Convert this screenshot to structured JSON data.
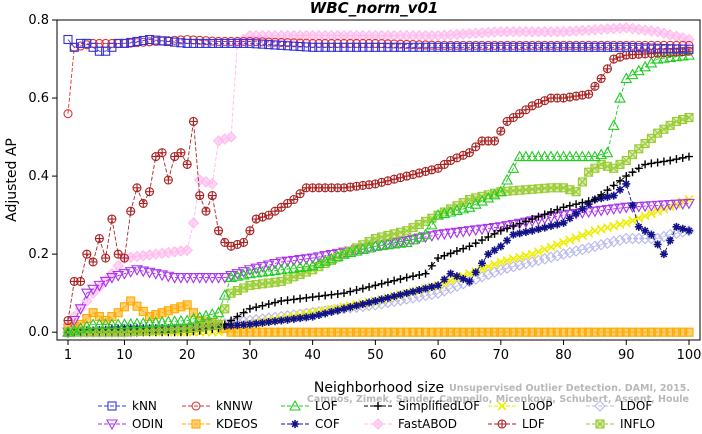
{
  "chart_data": {
    "type": "line",
    "title": "WBC_norm_v01",
    "xlabel": "Neighborhood size",
    "ylabel": "Adjusted AP",
    "xlim": [
      1,
      100
    ],
    "ylim": [
      -0.02,
      0.8
    ],
    "xticks": [
      1,
      10,
      20,
      30,
      40,
      50,
      60,
      70,
      80,
      90,
      100
    ],
    "yticks": [
      0.0,
      0.2,
      0.4,
      0.6,
      0.8
    ],
    "ytick_labels": [
      "0.0",
      "0.2",
      "0.4",
      "0.6",
      "0.8"
    ],
    "credit": [
      "Unsupervised Outlier Detection. DAMI, 2015.",
      "Campos, Zimek, Sander, Campello, Micenkova, Schubert, Assent, Houle"
    ],
    "series": [
      {
        "name": "kNN",
        "color": "#3333dd",
        "marker": "square",
        "points": [
          [
            1,
            0.75
          ],
          [
            2,
            0.73
          ],
          [
            3,
            0.74
          ],
          [
            4,
            0.74
          ],
          [
            5,
            0.73
          ],
          [
            6,
            0.72
          ],
          [
            7,
            0.72
          ],
          [
            8,
            0.73
          ],
          [
            9,
            0.74
          ],
          [
            10,
            0.74
          ],
          [
            12,
            0.745
          ],
          [
            14,
            0.75
          ],
          [
            20,
            0.74
          ],
          [
            30,
            0.74
          ],
          [
            40,
            0.73
          ],
          [
            50,
            0.73
          ],
          [
            60,
            0.73
          ],
          [
            70,
            0.73
          ],
          [
            80,
            0.73
          ],
          [
            90,
            0.73
          ],
          [
            100,
            0.725
          ]
        ]
      },
      {
        "name": "kNNW",
        "color": "#dd3333",
        "marker": "circle",
        "points": [
          [
            1,
            0.56
          ],
          [
            2,
            0.73
          ],
          [
            5,
            0.74
          ],
          [
            10,
            0.74
          ],
          [
            15,
            0.745
          ],
          [
            20,
            0.75
          ],
          [
            25,
            0.745
          ],
          [
            30,
            0.745
          ],
          [
            40,
            0.74
          ],
          [
            50,
            0.74
          ],
          [
            60,
            0.735
          ],
          [
            70,
            0.735
          ],
          [
            80,
            0.735
          ],
          [
            90,
            0.735
          ],
          [
            100,
            0.735
          ]
        ]
      },
      {
        "name": "LOF",
        "color": "#22cc22",
        "marker": "triangle-up",
        "points": [
          [
            1,
            0.0
          ],
          [
            5,
            0.02
          ],
          [
            10,
            0.02
          ],
          [
            20,
            0.03
          ],
          [
            25,
            0.05
          ],
          [
            27,
            0.14
          ],
          [
            30,
            0.15
          ],
          [
            35,
            0.16
          ],
          [
            40,
            0.17
          ],
          [
            45,
            0.2
          ],
          [
            50,
            0.22
          ],
          [
            55,
            0.23
          ],
          [
            58,
            0.25
          ],
          [
            60,
            0.3
          ],
          [
            65,
            0.32
          ],
          [
            70,
            0.36
          ],
          [
            73,
            0.45
          ],
          [
            80,
            0.45
          ],
          [
            85,
            0.45
          ],
          [
            87,
            0.46
          ],
          [
            89,
            0.6
          ],
          [
            90,
            0.65
          ],
          [
            95,
            0.7
          ],
          [
            100,
            0.71
          ]
        ]
      },
      {
        "name": "SimplifiedLOF",
        "color": "#000000",
        "marker": "plus",
        "points": [
          [
            1,
            0.0
          ],
          [
            10,
            0.0
          ],
          [
            20,
            0.0
          ],
          [
            25,
            0.01
          ],
          [
            28,
            0.04
          ],
          [
            30,
            0.06
          ],
          [
            35,
            0.08
          ],
          [
            40,
            0.09
          ],
          [
            45,
            0.1
          ],
          [
            50,
            0.12
          ],
          [
            55,
            0.14
          ],
          [
            58,
            0.15
          ],
          [
            60,
            0.19
          ],
          [
            65,
            0.22
          ],
          [
            70,
            0.26
          ],
          [
            75,
            0.29
          ],
          [
            80,
            0.32
          ],
          [
            85,
            0.34
          ],
          [
            90,
            0.4
          ],
          [
            93,
            0.43
          ],
          [
            97,
            0.44
          ],
          [
            100,
            0.45
          ]
        ]
      },
      {
        "name": "LoOP",
        "color": "#eeee00",
        "marker": "x",
        "points": [
          [
            1,
            0.0
          ],
          [
            10,
            0.0
          ],
          [
            20,
            0.0
          ],
          [
            25,
            0.0
          ],
          [
            30,
            0.02
          ],
          [
            40,
            0.05
          ],
          [
            50,
            0.08
          ],
          [
            60,
            0.12
          ],
          [
            65,
            0.15
          ],
          [
            70,
            0.18
          ],
          [
            75,
            0.2
          ],
          [
            80,
            0.23
          ],
          [
            85,
            0.26
          ],
          [
            90,
            0.28
          ],
          [
            95,
            0.31
          ],
          [
            100,
            0.34
          ]
        ]
      },
      {
        "name": "LDOF",
        "color": "#b8b8ee",
        "marker": "diamond",
        "points": [
          [
            1,
            0.0
          ],
          [
            10,
            0.0
          ],
          [
            20,
            0.01
          ],
          [
            25,
            0.02
          ],
          [
            30,
            0.03
          ],
          [
            40,
            0.05
          ],
          [
            50,
            0.07
          ],
          [
            60,
            0.1
          ],
          [
            65,
            0.13
          ],
          [
            70,
            0.16
          ],
          [
            75,
            0.18
          ],
          [
            80,
            0.2
          ],
          [
            85,
            0.22
          ],
          [
            90,
            0.24
          ],
          [
            95,
            0.24
          ],
          [
            97,
            0.25
          ],
          [
            100,
            0.26
          ]
        ]
      },
      {
        "name": "ODIN",
        "color": "#aa33ee",
        "marker": "triangle-down",
        "points": [
          [
            1,
            0.0
          ],
          [
            3,
            0.06
          ],
          [
            4,
            0.1
          ],
          [
            6,
            0.12
          ],
          [
            8,
            0.14
          ],
          [
            10,
            0.15
          ],
          [
            12,
            0.16
          ],
          [
            15,
            0.15
          ],
          [
            18,
            0.14
          ],
          [
            22,
            0.14
          ],
          [
            26,
            0.14
          ],
          [
            30,
            0.16
          ],
          [
            35,
            0.18
          ],
          [
            40,
            0.19
          ],
          [
            50,
            0.22
          ],
          [
            60,
            0.25
          ],
          [
            70,
            0.27
          ],
          [
            80,
            0.3
          ],
          [
            90,
            0.32
          ],
          [
            100,
            0.33
          ]
        ]
      },
      {
        "name": "KDEOS",
        "color": "#ffaa00",
        "marker": "square-filled",
        "points": [
          [
            1,
            0.01
          ],
          [
            3,
            0.02
          ],
          [
            5,
            0.05
          ],
          [
            7,
            0.03
          ],
          [
            9,
            0.05
          ],
          [
            11,
            0.08
          ],
          [
            14,
            0.04
          ],
          [
            18,
            0.06
          ],
          [
            20,
            0.07
          ],
          [
            22,
            0.03
          ],
          [
            25,
            0.02
          ],
          [
            27,
            0.0
          ],
          [
            30,
            0.0
          ],
          [
            50,
            0.0
          ],
          [
            70,
            0.0
          ],
          [
            90,
            0.0
          ],
          [
            100,
            0.0
          ]
        ]
      },
      {
        "name": "COF",
        "color": "#111188",
        "marker": "star",
        "points": [
          [
            1,
            0.0
          ],
          [
            10,
            0.01
          ],
          [
            20,
            0.01
          ],
          [
            30,
            0.02
          ],
          [
            40,
            0.04
          ],
          [
            50,
            0.08
          ],
          [
            55,
            0.1
          ],
          [
            60,
            0.12
          ],
          [
            62,
            0.15
          ],
          [
            65,
            0.13
          ],
          [
            68,
            0.2
          ],
          [
            70,
            0.22
          ],
          [
            72,
            0.25
          ],
          [
            75,
            0.26
          ],
          [
            80,
            0.28
          ],
          [
            85,
            0.34
          ],
          [
            88,
            0.35
          ],
          [
            90,
            0.38
          ],
          [
            92,
            0.27
          ],
          [
            94,
            0.25
          ],
          [
            96,
            0.2
          ],
          [
            98,
            0.27
          ],
          [
            100,
            0.26
          ]
        ]
      },
      {
        "name": "FastABOD",
        "color": "#ffbbee",
        "marker": "diamond-filled",
        "points": [
          [
            1,
            0.02
          ],
          [
            5,
            0.1
          ],
          [
            8,
            0.15
          ],
          [
            10,
            0.19
          ],
          [
            15,
            0.2
          ],
          [
            20,
            0.21
          ],
          [
            21,
            0.28
          ],
          [
            22,
            0.39
          ],
          [
            24,
            0.38
          ],
          [
            25,
            0.49
          ],
          [
            27,
            0.5
          ],
          [
            28,
            0.74
          ],
          [
            30,
            0.76
          ],
          [
            40,
            0.76
          ],
          [
            50,
            0.76
          ],
          [
            60,
            0.76
          ],
          [
            70,
            0.77
          ],
          [
            80,
            0.77
          ],
          [
            90,
            0.78
          ],
          [
            95,
            0.77
          ],
          [
            100,
            0.75
          ]
        ]
      },
      {
        "name": "LDF",
        "color": "#aa2222",
        "marker": "circle-plus",
        "points": [
          [
            1,
            0.03
          ],
          [
            2,
            0.13
          ],
          [
            3,
            0.13
          ],
          [
            4,
            0.2
          ],
          [
            5,
            0.18
          ],
          [
            6,
            0.24
          ],
          [
            7,
            0.19
          ],
          [
            8,
            0.29
          ],
          [
            9,
            0.2
          ],
          [
            10,
            0.19
          ],
          [
            11,
            0.31
          ],
          [
            12,
            0.37
          ],
          [
            13,
            0.33
          ],
          [
            14,
            0.36
          ],
          [
            15,
            0.45
          ],
          [
            16,
            0.46
          ],
          [
            17,
            0.39
          ],
          [
            18,
            0.45
          ],
          [
            19,
            0.46
          ],
          [
            20,
            0.43
          ],
          [
            21,
            0.54
          ],
          [
            22,
            0.35
          ],
          [
            23,
            0.31
          ],
          [
            24,
            0.35
          ],
          [
            25,
            0.26
          ],
          [
            26,
            0.23
          ],
          [
            27,
            0.22
          ],
          [
            29,
            0.23
          ],
          [
            31,
            0.29
          ],
          [
            33,
            0.3
          ],
          [
            35,
            0.32
          ],
          [
            37,
            0.34
          ],
          [
            39,
            0.37
          ],
          [
            45,
            0.37
          ],
          [
            50,
            0.38
          ],
          [
            55,
            0.4
          ],
          [
            60,
            0.42
          ],
          [
            62,
            0.44
          ],
          [
            65,
            0.46
          ],
          [
            67,
            0.49
          ],
          [
            69,
            0.49
          ],
          [
            71,
            0.54
          ],
          [
            73,
            0.56
          ],
          [
            75,
            0.58
          ],
          [
            78,
            0.6
          ],
          [
            80,
            0.6
          ],
          [
            84,
            0.61
          ],
          [
            86,
            0.65
          ],
          [
            88,
            0.7
          ],
          [
            90,
            0.71
          ],
          [
            100,
            0.72
          ]
        ]
      },
      {
        "name": "INFLO",
        "color": "#99cc33",
        "marker": "square-x",
        "points": [
          [
            1,
            0.0
          ],
          [
            10,
            0.0
          ],
          [
            20,
            0.01
          ],
          [
            25,
            0.02
          ],
          [
            27,
            0.1
          ],
          [
            30,
            0.12
          ],
          [
            35,
            0.13
          ],
          [
            40,
            0.16
          ],
          [
            45,
            0.2
          ],
          [
            50,
            0.24
          ],
          [
            55,
            0.26
          ],
          [
            60,
            0.3
          ],
          [
            65,
            0.34
          ],
          [
            70,
            0.36
          ],
          [
            78,
            0.37
          ],
          [
            80,
            0.37
          ],
          [
            82,
            0.36
          ],
          [
            84,
            0.41
          ],
          [
            86,
            0.43
          ],
          [
            88,
            0.42
          ],
          [
            90,
            0.44
          ],
          [
            92,
            0.47
          ],
          [
            95,
            0.51
          ],
          [
            98,
            0.54
          ],
          [
            100,
            0.55
          ]
        ]
      }
    ],
    "legend": {
      "placement": "bottom",
      "rows": [
        [
          "kNN",
          "kNNW",
          "LOF",
          "SimplifiedLOF",
          "LoOP",
          "LDOF"
        ],
        [
          "ODIN",
          "KDEOS",
          "COF",
          "FastABOD",
          "LDF",
          "INFLO"
        ]
      ]
    }
  }
}
